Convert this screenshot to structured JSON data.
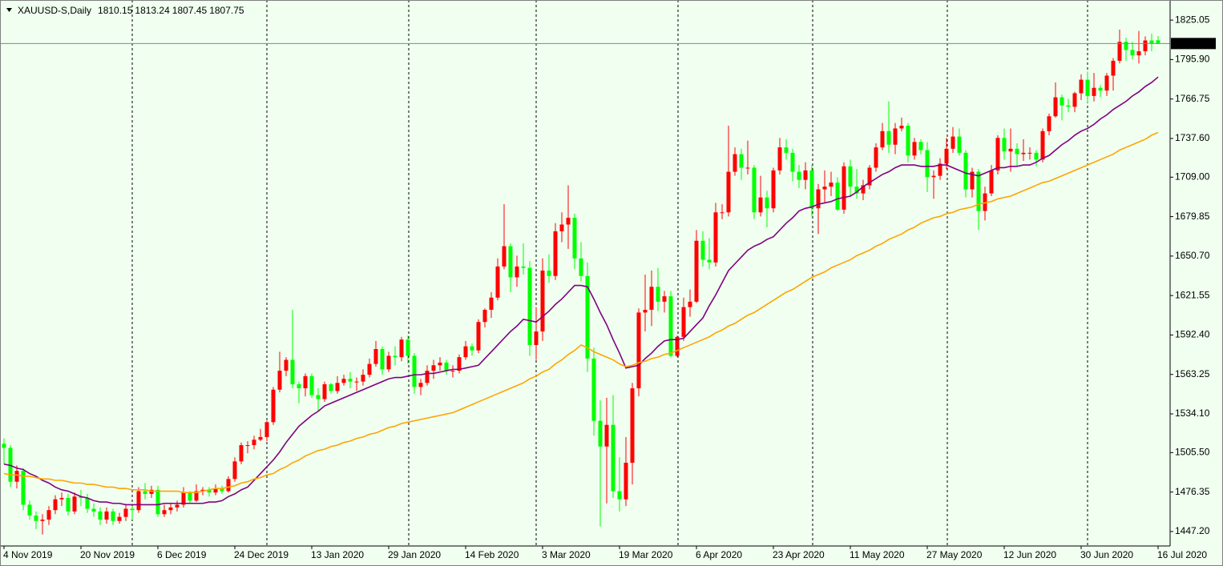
{
  "chart_data": {
    "type": "candlestick",
    "title": "XAUUSD-S,Daily",
    "background": "#f0fff0",
    "up_color": "#ff0000",
    "down_color": "#00ff00",
    "price_line_color": "#778899",
    "categories": [
      "4 Nov 2019",
      null,
      null,
      null,
      null,
      null,
      null,
      null,
      null,
      null,
      null,
      null,
      "20 Nov 2019",
      null,
      null,
      null,
      null,
      null,
      null,
      null,
      null,
      null,
      null,
      null,
      "6 Dec 2019",
      null,
      null,
      null,
      null,
      null,
      null,
      null,
      null,
      null,
      null,
      null,
      "24 Dec 2019",
      null,
      null,
      null,
      null,
      null,
      null,
      null,
      null,
      null,
      null,
      null,
      "13 Jan 2020",
      null,
      null,
      null,
      null,
      null,
      null,
      null,
      null,
      null,
      null,
      null,
      "29 Jan 2020",
      null,
      null,
      null,
      null,
      null,
      null,
      null,
      null,
      null,
      null,
      null,
      "14 Feb 2020",
      null,
      null,
      null,
      null,
      null,
      null,
      null,
      null,
      null,
      null,
      null,
      "3 Mar 2020",
      null,
      null,
      null,
      null,
      null,
      null,
      null,
      null,
      null,
      null,
      null,
      "19 Mar 2020",
      null,
      null,
      null,
      null,
      null,
      null,
      null,
      null,
      null,
      null,
      null,
      "6 Apr 2020",
      null,
      null,
      null,
      null,
      null,
      null,
      null,
      null,
      null,
      null,
      null,
      "23 Apr 2020",
      null,
      null,
      null,
      null,
      null,
      null,
      null,
      null,
      null,
      null,
      null,
      "11 May 2020",
      null,
      null,
      null,
      null,
      null,
      null,
      null,
      null,
      null,
      null,
      null,
      "27 May 2020",
      null,
      null,
      null,
      null,
      null,
      null,
      null,
      null,
      null,
      null,
      null,
      "12 Jun 2020",
      null,
      null,
      null,
      null,
      null,
      null,
      null,
      null,
      null,
      null,
      null,
      "30 Jun 2020",
      null,
      null,
      null,
      null,
      null,
      null,
      null,
      null,
      null,
      null,
      null,
      "16 Jul 2020"
    ],
    "open": [
      1512,
      1509,
      1484,
      1492,
      1467,
      1459,
      1455,
      1456,
      1463,
      1471,
      1472,
      1462,
      1473,
      1472,
      1464,
      1462,
      1456,
      1462,
      1455,
      1458,
      1464,
      1463,
      1477,
      1475,
      1478,
      1460,
      1463,
      1465,
      1467,
      1476,
      1470,
      1477,
      1478,
      1476,
      1479,
      1477,
      1486,
      1499,
      1511,
      1511,
      1515,
      1517,
      1528,
      1552,
      1566,
      1574,
      1556,
      1553,
      1562,
      1548,
      1545,
      1556,
      1551,
      1557,
      1560,
      1558,
      1558,
      1563,
      1571,
      1582,
      1567,
      1577,
      1576,
      1589,
      1577,
      1554,
      1557,
      1566,
      1570,
      1572,
      1566,
      1566,
      1576,
      1584,
      1581,
      1602,
      1611,
      1620,
      1643,
      1658,
      1635,
      1643,
      1642,
      1585,
      1595,
      1640,
      1636,
      1669,
      1674,
      1679,
      1649,
      1636,
      1575,
      1529,
      1510,
      1526,
      1477,
      1471,
      1498,
      1553,
      1609,
      1611,
      1628,
      1617,
      1621,
      1577,
      1591,
      1613,
      1617,
      1662,
      1648,
      1646,
      1683,
      1683,
      1713,
      1726,
      1716,
      1716,
      1683,
      1694,
      1686,
      1714,
      1731,
      1727,
      1713,
      1707,
      1714,
      1686,
      1700,
      1702,
      1705,
      1685,
      1717,
      1702,
      1697,
      1703,
      1716,
      1731,
      1743,
      1733,
      1745,
      1747,
      1725,
      1735,
      1729,
      1709,
      1710,
      1719,
      1730,
      1739,
      1727,
      1700,
      1713,
      1684,
      1697,
      1714,
      1738,
      1728,
      1730,
      1726,
      1727,
      1727,
      1722,
      1743,
      1754,
      1768,
      1762,
      1761,
      1771,
      1781,
      1769,
      1775,
      1773,
      1784,
      1795,
      1809,
      1803,
      1799,
      1802,
      1810,
      1810.15
    ],
    "high": [
      1516,
      1511,
      1496,
      1494,
      1470,
      1462,
      1460,
      1466,
      1474,
      1476,
      1475,
      1476,
      1478,
      1475,
      1468,
      1465,
      1465,
      1464,
      1461,
      1467,
      1466,
      1480,
      1483,
      1481,
      1481,
      1467,
      1468,
      1470,
      1480,
      1477,
      1482,
      1480,
      1480,
      1482,
      1481,
      1488,
      1502,
      1513,
      1514,
      1518,
      1523,
      1529,
      1554,
      1580,
      1576,
      1611,
      1558,
      1564,
      1564,
      1553,
      1558,
      1557,
      1562,
      1563,
      1565,
      1561,
      1567,
      1575,
      1588,
      1584,
      1580,
      1584,
      1591,
      1592,
      1579,
      1560,
      1570,
      1574,
      1576,
      1574,
      1570,
      1578,
      1588,
      1586,
      1604,
      1612,
      1624,
      1649,
      1689,
      1660,
      1651,
      1660,
      1647,
      1613,
      1649,
      1652,
      1675,
      1683,
      1703,
      1682,
      1661,
      1646,
      1583,
      1544,
      1546,
      1548,
      1502,
      1517,
      1557,
      1612,
      1637,
      1640,
      1642,
      1625,
      1625,
      1592,
      1620,
      1626,
      1670,
      1669,
      1664,
      1690,
      1689,
      1747,
      1731,
      1730,
      1736,
      1718,
      1710,
      1699,
      1716,
      1738,
      1737,
      1730,
      1718,
      1720,
      1718,
      1704,
      1714,
      1713,
      1709,
      1720,
      1722,
      1715,
      1707,
      1718,
      1734,
      1749,
      1765,
      1749,
      1753,
      1749,
      1738,
      1737,
      1735,
      1714,
      1723,
      1738,
      1746,
      1745,
      1729,
      1716,
      1715,
      1702,
      1718,
      1740,
      1745,
      1745,
      1734,
      1737,
      1731,
      1729,
      1745,
      1756,
      1779,
      1770,
      1767,
      1772,
      1785,
      1787,
      1786,
      1777,
      1786,
      1797,
      1818,
      1812,
      1809,
      1817,
      1813,
      1815,
      1813.24
    ],
    "low": [
      1497,
      1480,
      1479,
      1463,
      1456,
      1449,
      1445,
      1452,
      1460,
      1466,
      1459,
      1460,
      1466,
      1461,
      1458,
      1452,
      1453,
      1452,
      1453,
      1455,
      1456,
      1461,
      1471,
      1472,
      1458,
      1458,
      1460,
      1462,
      1465,
      1468,
      1469,
      1474,
      1473,
      1474,
      1475,
      1476,
      1484,
      1497,
      1505,
      1508,
      1514,
      1514,
      1526,
      1550,
      1562,
      1553,
      1542,
      1547,
      1546,
      1536,
      1543,
      1549,
      1549,
      1555,
      1553,
      1551,
      1555,
      1561,
      1569,
      1563,
      1565,
      1570,
      1573,
      1571,
      1549,
      1548,
      1555,
      1560,
      1566,
      1563,
      1561,
      1564,
      1574,
      1577,
      1579,
      1598,
      1605,
      1618,
      1641,
      1624,
      1628,
      1637,
      1577,
      1574,
      1588,
      1631,
      1633,
      1661,
      1656,
      1641,
      1632,
      1565,
      1518,
      1451,
      1468,
      1472,
      1462,
      1466,
      1482,
      1547,
      1595,
      1599,
      1610,
      1609,
      1576,
      1576,
      1588,
      1606,
      1616,
      1643,
      1641,
      1643,
      1678,
      1680,
      1710,
      1707,
      1711,
      1678,
      1680,
      1672,
      1683,
      1711,
      1722,
      1706,
      1701,
      1700,
      1680,
      1667,
      1690,
      1695,
      1684,
      1682,
      1695,
      1693,
      1692,
      1700,
      1713,
      1729,
      1727,
      1726,
      1743,
      1720,
      1722,
      1726,
      1698,
      1693,
      1707,
      1715,
      1727,
      1725,
      1694,
      1694,
      1670,
      1677,
      1695,
      1711,
      1722,
      1713,
      1717,
      1721,
      1722,
      1717,
      1720,
      1740,
      1753,
      1751,
      1757,
      1757,
      1766,
      1764,
      1765,
      1768,
      1769,
      1773,
      1793,
      1795,
      1796,
      1793,
      1799,
      1802,
      1807.45
    ],
    "close": [
      1509,
      1484,
      1492,
      1467,
      1459,
      1455,
      1456,
      1463,
      1471,
      1472,
      1462,
      1473,
      1472,
      1464,
      1462,
      1456,
      1462,
      1455,
      1458,
      1464,
      1463,
      1477,
      1475,
      1478,
      1460,
      1463,
      1465,
      1467,
      1476,
      1470,
      1477,
      1478,
      1476,
      1479,
      1477,
      1486,
      1499,
      1511,
      1511,
      1515,
      1517,
      1528,
      1552,
      1566,
      1574,
      1556,
      1553,
      1562,
      1548,
      1545,
      1556,
      1551,
      1557,
      1560,
      1558,
      1558,
      1563,
      1571,
      1582,
      1567,
      1577,
      1576,
      1589,
      1577,
      1554,
      1557,
      1566,
      1570,
      1572,
      1566,
      1566,
      1576,
      1584,
      1581,
      1602,
      1611,
      1620,
      1643,
      1658,
      1635,
      1643,
      1642,
      1585,
      1595,
      1640,
      1636,
      1669,
      1674,
      1679,
      1649,
      1636,
      1575,
      1529,
      1510,
      1526,
      1477,
      1471,
      1498,
      1553,
      1609,
      1611,
      1628,
      1617,
      1621,
      1577,
      1591,
      1613,
      1617,
      1662,
      1648,
      1646,
      1683,
      1683,
      1713,
      1726,
      1716,
      1716,
      1683,
      1694,
      1686,
      1714,
      1731,
      1727,
      1713,
      1707,
      1714,
      1686,
      1700,
      1702,
      1705,
      1685,
      1717,
      1702,
      1697,
      1703,
      1716,
      1731,
      1743,
      1733,
      1745,
      1747,
      1725,
      1735,
      1729,
      1709,
      1710,
      1719,
      1730,
      1739,
      1727,
      1700,
      1713,
      1684,
      1697,
      1714,
      1738,
      1728,
      1730,
      1726,
      1727,
      1727,
      1722,
      1743,
      1754,
      1768,
      1762,
      1761,
      1771,
      1781,
      1769,
      1775,
      1773,
      1784,
      1795,
      1809,
      1803,
      1799,
      1802,
      1810,
      1808,
      1807.75
    ],
    "overlays": [
      {
        "color": "#800080",
        "values": [
          1497,
          1496,
          1494,
          1493,
          1490,
          1488,
          1485,
          1483,
          1480,
          1478,
          1477,
          1475,
          1473,
          1472,
          1470,
          1469,
          1469,
          1468,
          1468,
          1467,
          1467,
          1467,
          1467,
          1467,
          1467,
          1468,
          1468,
          1468,
          1468,
          1468,
          1468,
          1468,
          1469,
          1469,
          1470,
          1473,
          1475,
          1478,
          1480,
          1485,
          1490,
          1495,
          1500,
          1506,
          1513,
          1519,
          1525,
          1529,
          1533,
          1536,
          1540,
          1542,
          1544,
          1546,
          1548,
          1550,
          1552,
          1554,
          1556,
          1558,
          1560,
          1561,
          1561,
          1562,
          1563,
          1563,
          1564,
          1564,
          1565,
          1566,
          1567,
          1567,
          1568,
          1569,
          1570,
          1575,
          1580,
          1585,
          1590,
          1595,
          1599,
          1604,
          1603,
          1602,
          1606,
          1610,
          1615,
          1619,
          1624,
          1629,
          1629,
          1628,
          1619,
          1609,
          1600,
          1589,
          1579,
          1568,
          1569,
          1570,
          1575,
          1579,
          1584,
          1588,
          1589,
          1589,
          1590,
          1595,
          1600,
          1605,
          1614,
          1622,
          1631,
          1640,
          1645,
          1650,
          1655,
          1658,
          1660,
          1663,
          1665,
          1670,
          1675,
          1679,
          1684,
          1686,
          1687,
          1689,
          1690,
          1691,
          1693,
          1694,
          1695,
          1698,
          1702,
          1705,
          1708,
          1711,
          1713,
          1716,
          1718,
          1718,
          1718,
          1717,
          1717,
          1717,
          1718,
          1718,
          1716,
          1714,
          1712,
          1711,
          1710,
          1712,
          1714,
          1716,
          1716,
          1717,
          1717,
          1718,
          1718,
          1720,
          1723,
          1725,
          1729,
          1733,
          1736,
          1740,
          1743,
          1745,
          1748,
          1752,
          1755,
          1759,
          1762,
          1765,
          1769,
          1772,
          1776,
          1779,
          1783
        ]
      },
      {
        "color": "#ffa500",
        "values": [
          1490,
          1489,
          1489,
          1488,
          1488,
          1487,
          1486,
          1486,
          1485,
          1485,
          1484,
          1483,
          1483,
          1482,
          1482,
          1481,
          1480,
          1480,
          1479,
          1479,
          1478,
          1478,
          1478,
          1477,
          1477,
          1477,
          1477,
          1477,
          1476,
          1476,
          1476,
          1477,
          1478,
          1479,
          1479,
          1480,
          1481,
          1483,
          1484,
          1486,
          1487,
          1489,
          1490,
          1493,
          1495,
          1498,
          1500,
          1503,
          1505,
          1507,
          1508,
          1510,
          1511,
          1513,
          1514,
          1516,
          1517,
          1519,
          1520,
          1522,
          1524,
          1525,
          1527,
          1528,
          1529,
          1530,
          1531,
          1532,
          1533,
          1534,
          1535,
          1537,
          1539,
          1541,
          1543,
          1545,
          1547,
          1549,
          1551,
          1553,
          1555,
          1557,
          1560,
          1562,
          1565,
          1567,
          1571,
          1574,
          1578,
          1581,
          1585,
          1583,
          1580,
          1578,
          1576,
          1574,
          1571,
          1569,
          1570,
          1572,
          1573,
          1575,
          1576,
          1578,
          1579,
          1581,
          1583,
          1585,
          1587,
          1589,
          1591,
          1594,
          1596,
          1599,
          1601,
          1604,
          1607,
          1609,
          1612,
          1615,
          1618,
          1621,
          1624,
          1626,
          1629,
          1632,
          1635,
          1637,
          1639,
          1642,
          1644,
          1646,
          1648,
          1651,
          1653,
          1655,
          1658,
          1660,
          1663,
          1665,
          1667,
          1670,
          1672,
          1675,
          1677,
          1679,
          1680,
          1682,
          1683,
          1685,
          1686,
          1687,
          1689,
          1690,
          1691,
          1693,
          1694,
          1695,
          1697,
          1699,
          1701,
          1703,
          1705,
          1706,
          1708,
          1710,
          1712,
          1714,
          1716,
          1718,
          1720,
          1722,
          1724,
          1726,
          1729,
          1731,
          1733,
          1735,
          1737,
          1740,
          1742
        ]
      }
    ],
    "ylim": [
      1436.5,
      1839.9
    ],
    "yticks": [
      1825.05,
      {
        "value": 1795.9,
        "label": "1795.90"
      },
      1766.75,
      {
        "value": 1737.6,
        "label": "1737.60"
      },
      {
        "value": 1709,
        "label": "1709.00"
      },
      1679.85,
      {
        "value": 1650.7,
        "label": "1650.70"
      },
      1621.55,
      {
        "value": 1592.4,
        "label": "1592.40"
      },
      1563.25,
      {
        "value": 1534.1,
        "label": "1534.10"
      },
      {
        "value": 1505.5,
        "label": "1505.50"
      },
      1476.35,
      {
        "value": 1447.2,
        "label": "1447.20"
      }
    ]
  }
}
